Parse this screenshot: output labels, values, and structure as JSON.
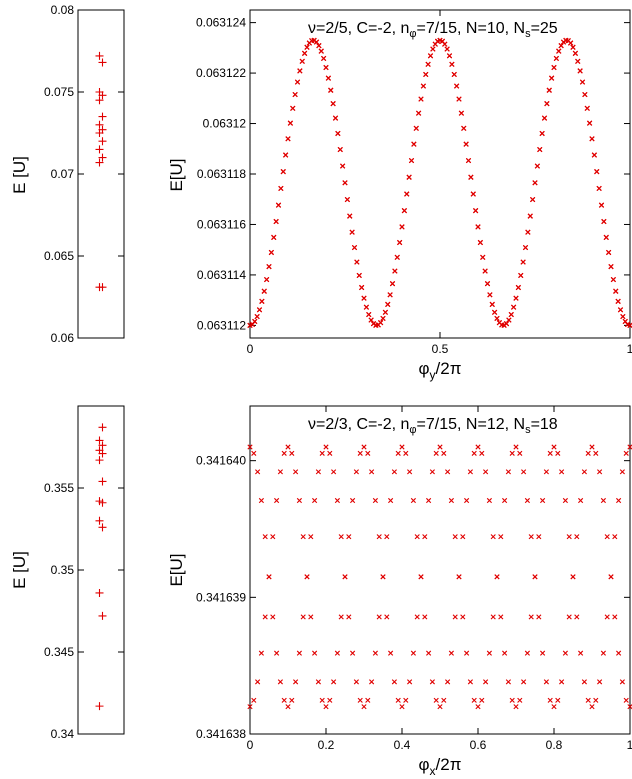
{
  "chart_data": [
    {
      "id": "top-spectrum",
      "type": "scatter",
      "marker": "plus",
      "color": "#e00000",
      "ylabel": "E [U]",
      "ylim": [
        0.06,
        0.08
      ],
      "yticks": [
        0.06,
        0.065,
        0.07,
        0.075,
        0.08
      ],
      "yticklabels": [
        "0.06",
        "0.065",
        "0.07",
        "0.075",
        "0.08"
      ],
      "values": [
        0.0631,
        0.0631,
        0.0707,
        0.071,
        0.0715,
        0.072,
        0.0725,
        0.0727,
        0.073,
        0.0735,
        0.0745,
        0.0748,
        0.075,
        0.0768,
        0.0772
      ]
    },
    {
      "id": "top-flow",
      "type": "scatter",
      "marker": "x",
      "color": "#e00000",
      "title": {
        "nu": "ν=2/5",
        "c": ", C=-2, n",
        "phi": "φ",
        "nphi": "=7/15, N=10, N",
        "s": "s",
        "ns": "=25"
      },
      "xlabel": {
        "phi": "φ",
        "sub": "y",
        "rest": "/2π"
      },
      "ylabel": "E[U]",
      "xlim": [
        0,
        1
      ],
      "ylim": [
        0.0631115,
        0.0631245
      ],
      "xticks": [
        0,
        0.5,
        1
      ],
      "xticklabels": [
        "0",
        "0.5",
        "1"
      ],
      "yticks": [
        0.063112,
        0.063114,
        0.063116,
        0.063118,
        0.06312,
        0.063122,
        0.063124
      ],
      "yticklabels": [
        "0.063112",
        "0.063114",
        "0.063116",
        "0.063118",
        "0.06312",
        "0.063122",
        "0.063124"
      ],
      "period": 0.3333333,
      "shifts": [
        0,
        0.3333333,
        0.6666667
      ],
      "curve": {
        "min": 0.063112,
        "max": 0.0631233,
        "min_at": 0.0
      },
      "n_points": 160
    },
    {
      "id": "bottom-spectrum",
      "type": "scatter",
      "marker": "plus",
      "color": "#e00000",
      "ylabel": "E [U]",
      "ylim": [
        0.34,
        0.36
      ],
      "yticks": [
        0.34,
        0.345,
        0.35,
        0.355
      ],
      "yticklabels": [
        "0.34",
        "0.345",
        "0.35",
        "0.355"
      ],
      "values": [
        0.3417,
        0.3472,
        0.3486,
        0.3526,
        0.353,
        0.3541,
        0.3542,
        0.3554,
        0.3567,
        0.3571,
        0.3573,
        0.3576,
        0.3579,
        0.3587
      ]
    },
    {
      "id": "bottom-flow",
      "type": "scatter",
      "marker": "x",
      "color": "#e00000",
      "title": {
        "nu": "ν=2/3",
        "c": ", C=-2, n",
        "phi": "φ",
        "nphi": "=7/15, N=12, N",
        "s": "s",
        "ns": "=18"
      },
      "xlabel": {
        "phi": "φ",
        "sub": "x",
        "rest": "/2π"
      },
      "ylabel": "E[U]",
      "xlim": [
        0,
        1
      ],
      "ylim": [
        0.341638,
        0.3416404
      ],
      "xticks": [
        0,
        0.2,
        0.4,
        0.6,
        0.8,
        1
      ],
      "xticklabels": [
        "0",
        "0.2",
        "0.4",
        "0.6",
        "0.8",
        "1"
      ],
      "yticks": [
        0.341638,
        0.341639,
        0.34164
      ],
      "yticklabels": [
        "0.341638",
        "0.341639",
        "0.341640"
      ],
      "period": 0.2,
      "shifts": [
        0,
        0.1
      ],
      "curve": {
        "min": 0.3416382,
        "max": 0.3416401,
        "min_at": 0.1
      },
      "n_points": 100
    }
  ]
}
